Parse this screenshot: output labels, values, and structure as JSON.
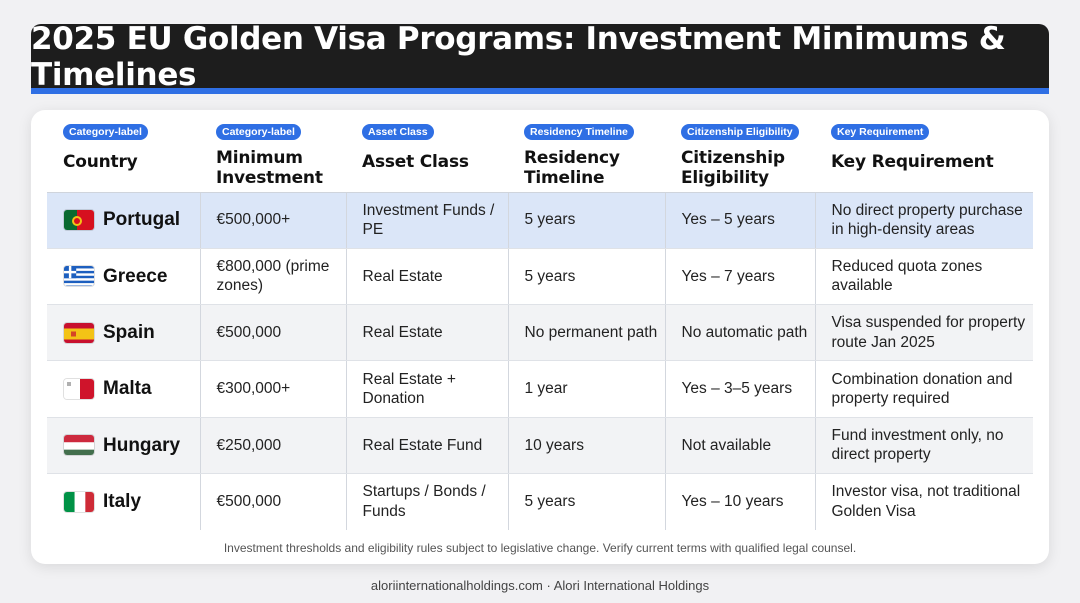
{
  "title": "2025 EU Golden Visa Programs: Investment Minimums & Timelines",
  "accent_color": "#2f6fe4",
  "highlight_color": "#dbe6f8",
  "columns": [
    {
      "tag": "",
      "label": "Country"
    },
    {
      "tag": "Category-label",
      "label": "Minimum Investment"
    },
    {
      "tag": "Asset Class",
      "label": "Asset Class"
    },
    {
      "tag": "Residency Timeline",
      "label": "Residency Timeline"
    },
    {
      "tag": "Citizenship Eligibility",
      "label": "Citizenship Eligibility"
    },
    {
      "tag": "Key Requirement",
      "label": "Key Requirement"
    }
  ],
  "first_tag": "Category-label",
  "rows": [
    {
      "flag": "portugal-flag-icon",
      "country": "Portugal",
      "investment": "€500,000+",
      "asset": "Investment Funds / PE",
      "residency": "5 years",
      "citizenship": "Yes – 5 years",
      "requirement": "No direct property purchase in high-density areas"
    },
    {
      "flag": "greece-flag-icon",
      "country": "Greece",
      "investment": "€800,000 (prime zones)",
      "asset": "Real Estate",
      "residency": "5 years",
      "citizenship": "Yes – 7 years",
      "requirement": "Reduced quota zones available"
    },
    {
      "flag": "spain-flag-icon",
      "country": "Spain",
      "investment": "€500,000",
      "asset": "Real Estate",
      "residency": "No permanent path",
      "citizenship": "No automatic path",
      "requirement": "Visa suspended for property route Jan 2025"
    },
    {
      "flag": "malta-flag-icon",
      "country": "Malta",
      "investment": "€300,000+",
      "asset": "Real Estate + Donation",
      "residency": "1 year",
      "citizenship": "Yes – 3–5 years",
      "requirement": "Combination donation and property required"
    },
    {
      "flag": "hungary-flag-icon",
      "country": "Hungary",
      "investment": "€250,000",
      "asset": "Real Estate Fund",
      "residency": "10 years",
      "citizenship": "Not available",
      "requirement": "Fund investment only, no direct property"
    },
    {
      "flag": "italy-flag-icon",
      "country": "Italy",
      "investment": "€500,000",
      "asset": "Startups / Bonds / Funds",
      "residency": "5 years",
      "citizenship": "Yes – 10 years",
      "requirement": "Investor visa, not traditional Golden Visa"
    }
  ],
  "disclaimer": "Investment thresholds and eligibility rules subject to legislative change. Verify current terms with qualified legal counsel.",
  "footer": "aloriinternationalholdings.com · Alori International Holdings"
}
